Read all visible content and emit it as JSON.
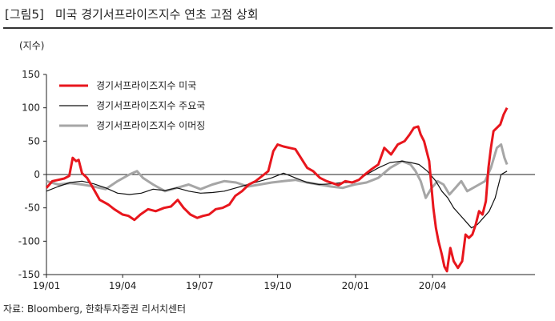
{
  "figure": {
    "label": "[그림5]",
    "title": "미국 경기서프라이즈지수 연초 고점 상회",
    "source": "자료: Bloomberg, 한화투자증권 리서치센터"
  },
  "chart_data": {
    "type": "line",
    "title": "미국 경기서프라이즈지수 연초 고점 상회",
    "ylabel": "(지수)",
    "xlabel": "",
    "ylim": [
      -150,
      150
    ],
    "yticks": [
      150,
      100,
      50,
      0,
      -50,
      -100,
      -150
    ],
    "xlim": [
      "2019-01-01",
      "2020-07-31"
    ],
    "xticks": [
      {
        "date": "2019-01-01",
        "label": "19/01"
      },
      {
        "date": "2019-04-01",
        "label": "19/04"
      },
      {
        "date": "2019-07-01",
        "label": "19/07"
      },
      {
        "date": "2019-10-01",
        "label": "19/10"
      },
      {
        "date": "2020-01-01",
        "label": "20/01"
      },
      {
        "date": "2020-04-01",
        "label": "20/04"
      }
    ],
    "grid": false,
    "legend_position": "top-left",
    "series": [
      {
        "name": "경기서프라이즈지수 미국",
        "color": "#e8161d",
        "points": [
          [
            "2019-01-01",
            -20
          ],
          [
            "2019-01-08",
            -10
          ],
          [
            "2019-01-15",
            -8
          ],
          [
            "2019-01-22",
            -6
          ],
          [
            "2019-01-28",
            -2
          ],
          [
            "2019-02-01",
            25
          ],
          [
            "2019-02-05",
            20
          ],
          [
            "2019-02-08",
            22
          ],
          [
            "2019-02-12",
            2
          ],
          [
            "2019-02-18",
            -5
          ],
          [
            "2019-02-25",
            -20
          ],
          [
            "2019-03-05",
            -38
          ],
          [
            "2019-03-15",
            -45
          ],
          [
            "2019-03-22",
            -52
          ],
          [
            "2019-04-01",
            -60
          ],
          [
            "2019-04-08",
            -62
          ],
          [
            "2019-04-15",
            -68
          ],
          [
            "2019-04-22",
            -60
          ],
          [
            "2019-05-01",
            -52
          ],
          [
            "2019-05-10",
            -55
          ],
          [
            "2019-05-20",
            -50
          ],
          [
            "2019-05-28",
            -48
          ],
          [
            "2019-06-05",
            -38
          ],
          [
            "2019-06-12",
            -50
          ],
          [
            "2019-06-20",
            -60
          ],
          [
            "2019-06-28",
            -65
          ],
          [
            "2019-07-05",
            -62
          ],
          [
            "2019-07-12",
            -60
          ],
          [
            "2019-07-20",
            -52
          ],
          [
            "2019-07-28",
            -50
          ],
          [
            "2019-08-05",
            -45
          ],
          [
            "2019-08-12",
            -32
          ],
          [
            "2019-08-20",
            -25
          ],
          [
            "2019-08-28",
            -15
          ],
          [
            "2019-09-05",
            -10
          ],
          [
            "2019-09-12",
            -3
          ],
          [
            "2019-09-20",
            5
          ],
          [
            "2019-09-26",
            35
          ],
          [
            "2019-10-01",
            45
          ],
          [
            "2019-10-08",
            42
          ],
          [
            "2019-10-15",
            40
          ],
          [
            "2019-10-22",
            38
          ],
          [
            "2019-10-30",
            22
          ],
          [
            "2019-11-05",
            10
          ],
          [
            "2019-11-12",
            5
          ],
          [
            "2019-11-20",
            -5
          ],
          [
            "2019-11-28",
            -10
          ],
          [
            "2019-12-05",
            -13
          ],
          [
            "2019-12-12",
            -16
          ],
          [
            "2019-12-20",
            -10
          ],
          [
            "2019-12-28",
            -12
          ],
          [
            "2020-01-05",
            -8
          ],
          [
            "2020-01-12",
            0
          ],
          [
            "2020-01-20",
            8
          ],
          [
            "2020-01-28",
            15
          ],
          [
            "2020-02-04",
            40
          ],
          [
            "2020-02-12",
            30
          ],
          [
            "2020-02-20",
            45
          ],
          [
            "2020-02-28",
            50
          ],
          [
            "2020-03-05",
            60
          ],
          [
            "2020-03-10",
            70
          ],
          [
            "2020-03-15",
            72
          ],
          [
            "2020-03-18",
            60
          ],
          [
            "2020-03-22",
            50
          ],
          [
            "2020-03-28",
            20
          ],
          [
            "2020-04-02",
            -50
          ],
          [
            "2020-04-05",
            -80
          ],
          [
            "2020-04-08",
            -100
          ],
          [
            "2020-04-12",
            -120
          ],
          [
            "2020-04-15",
            -138
          ],
          [
            "2020-04-18",
            -145
          ],
          [
            "2020-04-22",
            -110
          ],
          [
            "2020-04-26",
            -130
          ],
          [
            "2020-05-01",
            -140
          ],
          [
            "2020-05-06",
            -130
          ],
          [
            "2020-05-10",
            -90
          ],
          [
            "2020-05-14",
            -95
          ],
          [
            "2020-05-18",
            -90
          ],
          [
            "2020-05-22",
            -75
          ],
          [
            "2020-05-26",
            -55
          ],
          [
            "2020-05-30",
            -60
          ],
          [
            "2020-06-03",
            -40
          ],
          [
            "2020-06-06",
            10
          ],
          [
            "2020-06-09",
            40
          ],
          [
            "2020-06-12",
            65
          ],
          [
            "2020-06-16",
            70
          ],
          [
            "2020-06-20",
            75
          ],
          [
            "2020-06-24",
            90
          ],
          [
            "2020-06-28",
            100
          ]
        ]
      },
      {
        "name": "경기서프라이즈지수 주요국",
        "color": "#111111",
        "points": [
          [
            "2019-01-01",
            -25
          ],
          [
            "2019-01-15",
            -18
          ],
          [
            "2019-01-29",
            -12
          ],
          [
            "2019-02-12",
            -10
          ],
          [
            "2019-02-26",
            -14
          ],
          [
            "2019-03-12",
            -20
          ],
          [
            "2019-03-26",
            -28
          ],
          [
            "2019-04-09",
            -30
          ],
          [
            "2019-04-23",
            -28
          ],
          [
            "2019-05-07",
            -22
          ],
          [
            "2019-05-21",
            -24
          ],
          [
            "2019-06-04",
            -20
          ],
          [
            "2019-06-18",
            -25
          ],
          [
            "2019-07-02",
            -28
          ],
          [
            "2019-07-16",
            -27
          ],
          [
            "2019-07-30",
            -25
          ],
          [
            "2019-08-13",
            -20
          ],
          [
            "2019-08-27",
            -15
          ],
          [
            "2019-09-10",
            -10
          ],
          [
            "2019-09-24",
            -5
          ],
          [
            "2019-10-08",
            2
          ],
          [
            "2019-10-22",
            -5
          ],
          [
            "2019-11-05",
            -12
          ],
          [
            "2019-11-19",
            -15
          ],
          [
            "2019-12-03",
            -14
          ],
          [
            "2019-12-17",
            -12
          ],
          [
            "2019-12-31",
            -12
          ],
          [
            "2020-01-14",
            0
          ],
          [
            "2020-01-28",
            10
          ],
          [
            "2020-02-11",
            18
          ],
          [
            "2020-02-25",
            20
          ],
          [
            "2020-03-06",
            18
          ],
          [
            "2020-03-16",
            15
          ],
          [
            "2020-03-26",
            5
          ],
          [
            "2020-04-05",
            -10
          ],
          [
            "2020-04-12",
            -25
          ],
          [
            "2020-04-19",
            -35
          ],
          [
            "2020-04-26",
            -50
          ],
          [
            "2020-05-03",
            -60
          ],
          [
            "2020-05-10",
            -70
          ],
          [
            "2020-05-17",
            -80
          ],
          [
            "2020-05-24",
            -75
          ],
          [
            "2020-05-31",
            -65
          ],
          [
            "2020-06-07",
            -55
          ],
          [
            "2020-06-14",
            -35
          ],
          [
            "2020-06-21",
            0
          ],
          [
            "2020-06-28",
            5
          ]
        ]
      },
      {
        "name": "경기서프라이즈지수 이머징",
        "color": "#a6a6a6",
        "points": [
          [
            "2019-01-01",
            -10
          ],
          [
            "2019-01-15",
            -15
          ],
          [
            "2019-01-29",
            -13
          ],
          [
            "2019-02-12",
            -15
          ],
          [
            "2019-02-26",
            -18
          ],
          [
            "2019-03-12",
            -22
          ],
          [
            "2019-03-26",
            -10
          ],
          [
            "2019-04-09",
            0
          ],
          [
            "2019-04-18",
            5
          ],
          [
            "2019-04-25",
            -5
          ],
          [
            "2019-05-07",
            -15
          ],
          [
            "2019-05-21",
            -25
          ],
          [
            "2019-06-04",
            -20
          ],
          [
            "2019-06-18",
            -15
          ],
          [
            "2019-07-02",
            -22
          ],
          [
            "2019-07-16",
            -15
          ],
          [
            "2019-07-30",
            -10
          ],
          [
            "2019-08-13",
            -12
          ],
          [
            "2019-08-27",
            -18
          ],
          [
            "2019-09-10",
            -15
          ],
          [
            "2019-09-24",
            -12
          ],
          [
            "2019-10-08",
            -10
          ],
          [
            "2019-10-22",
            -8
          ],
          [
            "2019-11-05",
            -12
          ],
          [
            "2019-11-19",
            -15
          ],
          [
            "2019-12-03",
            -18
          ],
          [
            "2019-12-17",
            -20
          ],
          [
            "2019-12-31",
            -15
          ],
          [
            "2020-01-14",
            -12
          ],
          [
            "2020-01-28",
            -5
          ],
          [
            "2020-02-11",
            10
          ],
          [
            "2020-02-25",
            20
          ],
          [
            "2020-03-06",
            15
          ],
          [
            "2020-03-12",
            5
          ],
          [
            "2020-03-18",
            -10
          ],
          [
            "2020-03-24",
            -35
          ],
          [
            "2020-03-31",
            -20
          ],
          [
            "2020-04-07",
            -10
          ],
          [
            "2020-04-14",
            -15
          ],
          [
            "2020-04-21",
            -30
          ],
          [
            "2020-04-28",
            -20
          ],
          [
            "2020-05-05",
            -10
          ],
          [
            "2020-05-12",
            -25
          ],
          [
            "2020-05-19",
            -20
          ],
          [
            "2020-05-26",
            -15
          ],
          [
            "2020-06-02",
            -10
          ],
          [
            "2020-06-09",
            10
          ],
          [
            "2020-06-16",
            40
          ],
          [
            "2020-06-21",
            45
          ],
          [
            "2020-06-25",
            25
          ],
          [
            "2020-06-28",
            15
          ]
        ]
      }
    ]
  }
}
